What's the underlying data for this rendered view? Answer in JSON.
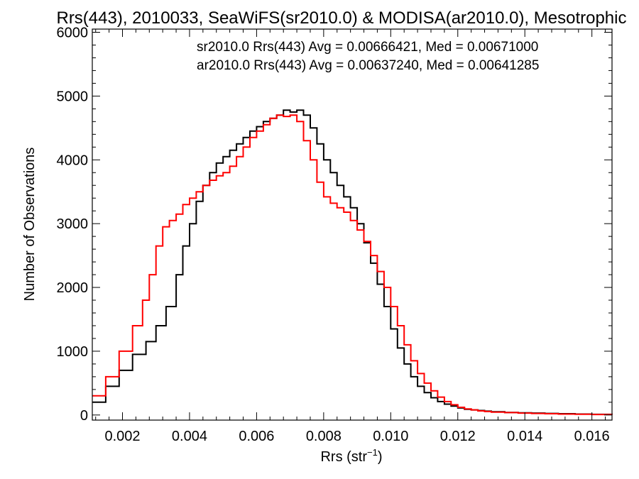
{
  "chart_data": {
    "type": "line",
    "title": "Rrs(443), 2010033, SeaWiFS(sr2010.0) & MODISA(ar2010.0), Mesotrophic",
    "xlabel": "Rrs (str",
    "xlabel_sup": "−1",
    "xlabel_close": ")",
    "ylabel": "Number of Observations",
    "xlim": [
      0.0011,
      0.0166
    ],
    "ylim": [
      -80,
      6050
    ],
    "xticks": [
      0.002,
      0.004,
      0.006,
      0.008,
      0.01,
      0.012,
      0.014,
      0.016
    ],
    "xtick_labels": [
      "0.002",
      "0.004",
      "0.006",
      "0.008",
      "0.010",
      "0.012",
      "0.014",
      "0.016"
    ],
    "yticks": [
      0,
      1000,
      2000,
      3000,
      4000,
      5000,
      6000
    ],
    "ytick_labels": [
      "0",
      "1000",
      "2000",
      "3000",
      "4000",
      "5000",
      "6000"
    ],
    "grid": false,
    "legend_position": "top-right",
    "series": [
      {
        "name": "sr2010.0 Rrs(443) Avg = 0.00666421, Med = 0.00671000",
        "color": "#000000",
        "x": [
          0.0011,
          0.0015,
          0.0019,
          0.0023,
          0.0027,
          0.003,
          0.0033,
          0.0036,
          0.0038,
          0.004,
          0.0042,
          0.0044,
          0.0046,
          0.0048,
          0.005,
          0.0052,
          0.0054,
          0.0056,
          0.0058,
          0.006,
          0.0062,
          0.0064,
          0.0066,
          0.0068,
          0.007,
          0.0072,
          0.0074,
          0.0076,
          0.0078,
          0.008,
          0.0082,
          0.0084,
          0.0086,
          0.0088,
          0.009,
          0.0092,
          0.0094,
          0.0096,
          0.0098,
          0.01,
          0.0102,
          0.0104,
          0.0106,
          0.0108,
          0.011,
          0.0112,
          0.0114,
          0.0116,
          0.0118,
          0.012,
          0.0122,
          0.0124,
          0.0126,
          0.0128,
          0.013,
          0.0134,
          0.0138,
          0.0142,
          0.0146,
          0.015,
          0.0155,
          0.016,
          0.0166
        ],
        "y": [
          200,
          450,
          700,
          950,
          1150,
          1400,
          1700,
          2200,
          2650,
          3000,
          3350,
          3600,
          3800,
          3950,
          4050,
          4150,
          4250,
          4350,
          4450,
          4520,
          4600,
          4650,
          4700,
          4780,
          4750,
          4780,
          4700,
          4500,
          4250,
          4000,
          3800,
          3600,
          3420,
          3250,
          3000,
          2700,
          2380,
          2050,
          1700,
          1350,
          1050,
          800,
          600,
          450,
          350,
          270,
          210,
          170,
          140,
          110,
          90,
          80,
          70,
          60,
          50,
          40,
          35,
          30,
          25,
          20,
          15,
          10,
          8
        ]
      },
      {
        "name": "ar2010.0 Rrs(443) Avg = 0.00637240, Med = 0.00641285",
        "color": "#ff0000",
        "x": [
          0.0011,
          0.0015,
          0.0019,
          0.0023,
          0.0026,
          0.0028,
          0.003,
          0.0032,
          0.0034,
          0.0036,
          0.0038,
          0.004,
          0.0042,
          0.0044,
          0.0046,
          0.0048,
          0.005,
          0.0052,
          0.0054,
          0.0056,
          0.0058,
          0.006,
          0.0062,
          0.0064,
          0.0066,
          0.0068,
          0.007,
          0.0072,
          0.0074,
          0.0076,
          0.0078,
          0.008,
          0.0082,
          0.0084,
          0.0086,
          0.0088,
          0.009,
          0.0092,
          0.0094,
          0.0096,
          0.0098,
          0.01,
          0.0102,
          0.0104,
          0.0106,
          0.0108,
          0.011,
          0.0112,
          0.0114,
          0.0116,
          0.0118,
          0.012,
          0.0122,
          0.0124,
          0.0126,
          0.0128,
          0.013,
          0.0134,
          0.0138,
          0.0142,
          0.0146,
          0.015,
          0.0155,
          0.016,
          0.0166
        ],
        "y": [
          300,
          600,
          1000,
          1400,
          1800,
          2200,
          2650,
          2950,
          3050,
          3150,
          3300,
          3400,
          3500,
          3600,
          3680,
          3750,
          3800,
          3900,
          4050,
          4200,
          4350,
          4450,
          4550,
          4650,
          4700,
          4680,
          4700,
          4600,
          4300,
          4000,
          3650,
          3420,
          3320,
          3250,
          3180,
          3050,
          2900,
          2720,
          2500,
          2250,
          2000,
          1700,
          1400,
          1100,
          850,
          650,
          500,
          380,
          280,
          210,
          160,
          120,
          95,
          80,
          65,
          55,
          45,
          38,
          30,
          25,
          20,
          15,
          12,
          8,
          5
        ]
      }
    ]
  }
}
